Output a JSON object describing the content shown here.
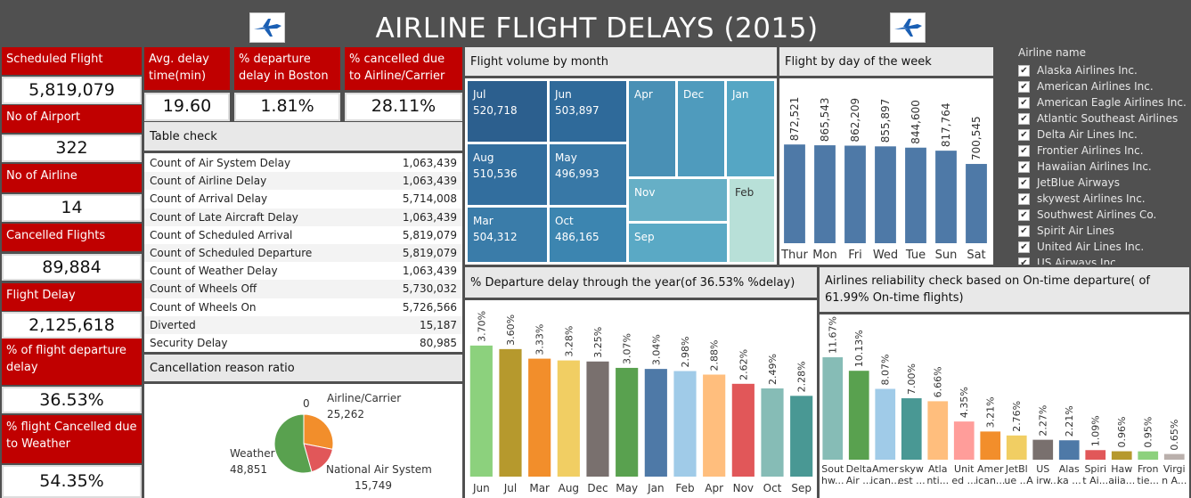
{
  "title": "AIRLINE FLIGHT DELAYS (2015)",
  "kpis_left": [
    {
      "label": "Scheduled Flight",
      "value": "5,819,079"
    },
    {
      "label": "No of Airport",
      "value": "322"
    },
    {
      "label": "No of Airline",
      "value": "14"
    },
    {
      "label": "Cancelled Flights",
      "value": "89,884"
    },
    {
      "label": "Flight Delay",
      "value": "2,125,618"
    },
    {
      "label": "% of flight departure delay",
      "value": "36.53%"
    },
    {
      "label": "% flight Cancelled due to Weather",
      "value": "54.35%"
    }
  ],
  "kpis_top": [
    {
      "label": "Avg. delay time(min)",
      "value": "19.60"
    },
    {
      "label": "% departure delay in Boston",
      "value": "1.81%"
    },
    {
      "label": "% cancelled due to Airline/Carrier",
      "value": "28.11%"
    }
  ],
  "table_check": {
    "title": "Table check",
    "rows": [
      {
        "name": "Count of Air System Delay",
        "value": "1,063,439"
      },
      {
        "name": "Count of Airline Delay",
        "value": "1,063,439"
      },
      {
        "name": "Count of Arrival Delay",
        "value": "5,714,008"
      },
      {
        "name": "Count of Late Aircraft Delay",
        "value": "1,063,439"
      },
      {
        "name": "Count of Scheduled Arrival",
        "value": "5,819,079"
      },
      {
        "name": "Count of Scheduled Departure",
        "value": "5,819,079"
      },
      {
        "name": "Count of Weather Delay",
        "value": "1,063,439"
      },
      {
        "name": "Count of Wheels Off",
        "value": "5,730,032"
      },
      {
        "name": "Count of Wheels On",
        "value": "5,726,566"
      },
      {
        "name": "Diverted",
        "value": "15,187"
      },
      {
        "name": "Security Delay",
        "value": "80,985"
      }
    ]
  },
  "cancellation": {
    "title": "Cancellation reason ratio",
    "zero_label": "0",
    "slices": [
      {
        "name": "Airline/Carrier",
        "value": "25,262",
        "num": 25262,
        "color": "#f28e2b"
      },
      {
        "name": "National Air System",
        "value": "15,749",
        "num": 15749,
        "color": "#e15759"
      },
      {
        "name": "Weather",
        "value": "48,851",
        "num": 48851,
        "color": "#59a14f"
      }
    ]
  },
  "treemap": {
    "title": "Flight volume by month",
    "tiles": [
      {
        "month": "Jul",
        "value": "520,718"
      },
      {
        "month": "Jun",
        "value": "503,897"
      },
      {
        "month": "Aug",
        "value": "510,536"
      },
      {
        "month": "May",
        "value": "496,993"
      },
      {
        "month": "Mar",
        "value": "504,312"
      },
      {
        "month": "Oct",
        "value": "486,165"
      },
      {
        "month": "Apr",
        "value": ""
      },
      {
        "month": "Dec",
        "value": ""
      },
      {
        "month": "Jan",
        "value": ""
      },
      {
        "month": "Nov",
        "value": ""
      },
      {
        "month": "Feb",
        "value": ""
      },
      {
        "month": "Sep",
        "value": ""
      }
    ]
  },
  "day_chart_title": "Flight by day of the week",
  "month_chart_title": "% Departure delay through the year(of 36.53% %delay)",
  "airline_chart_title": "Airlines reliability check based on On-time departure( of 61.99% On-time flights)",
  "airline_filter": {
    "title": "Airline name",
    "items": [
      "Alaska Airlines Inc.",
      "American Airlines Inc.",
      "American Eagle Airlines Inc.",
      "Atlantic Southeast Airlines",
      "Delta Air Lines Inc.",
      "Frontier Airlines Inc.",
      "Hawaiian Airlines Inc.",
      "JetBlue Airways",
      "skywest Airlines Inc.",
      "Southwest Airlines Co.",
      "Spirit Air Lines",
      "United Air Lines Inc.",
      "US Airways Inc."
    ],
    "check_glyph": "✔"
  },
  "chart_data": [
    {
      "type": "bar",
      "title": "Flight by day of the week",
      "categories": [
        "Thur",
        "Mon",
        "Fri",
        "Wed",
        "Tue",
        "Sun",
        "Sat"
      ],
      "values": [
        872521,
        865543,
        862209,
        855897,
        844600,
        817764,
        700545
      ],
      "labels": [
        "872,521",
        "865,543",
        "862,209",
        "855,897",
        "844,600",
        "817,764",
        "700,545"
      ],
      "ylim": [
        0,
        1000000
      ],
      "color": "#4e79a7"
    },
    {
      "type": "bar",
      "title": "% Departure delay through the year(of 36.53% %delay)",
      "categories": [
        "Jun",
        "Jul",
        "Mar",
        "Aug",
        "Dec",
        "May",
        "Jan",
        "Feb",
        "Apr",
        "Nov",
        "Oct",
        "Sep"
      ],
      "values": [
        3.7,
        3.6,
        3.33,
        3.28,
        3.25,
        3.07,
        3.04,
        2.98,
        2.88,
        2.62,
        2.49,
        2.28
      ],
      "labels": [
        "3.70%",
        "3.60%",
        "3.33%",
        "3.28%",
        "3.25%",
        "3.07%",
        "3.04%",
        "2.98%",
        "2.88%",
        "2.62%",
        "2.49%",
        "2.28%"
      ],
      "ylim": [
        0,
        4.2
      ],
      "colors": [
        "#8cd17d",
        "#b6992d",
        "#f28e2b",
        "#f1ce63",
        "#79706e",
        "#59a14f",
        "#4e79a7",
        "#a0cbe8",
        "#ffbe7d",
        "#e15759",
        "#86bcb6",
        "#499894"
      ]
    },
    {
      "type": "bar",
      "title": "Airlines reliability check based on On-time departure( of 61.99% On-time flights)",
      "categories": [
        "Sout hw...",
        "Delta Air ...",
        "Amer ican...",
        "skyw est ...",
        "Atla nti...",
        "Unit ed ...",
        "Amer ican...",
        "JetBl ue ...",
        "US A irw...",
        "Alas ka ...",
        "Spiri t Ai...",
        "Haw aiia...",
        "Fron tie...",
        "Virgi n A..."
      ],
      "values": [
        11.67,
        10.13,
        8.07,
        7.0,
        6.66,
        4.35,
        3.21,
        2.76,
        2.27,
        2.21,
        1.09,
        0.96,
        0.95,
        0.65
      ],
      "labels": [
        "11.67%",
        "10.13%",
        "8.07%",
        "7.00%",
        "6.66%",
        "4.35%",
        "3.21%",
        "2.76%",
        "2.27%",
        "2.21%",
        "1.09%",
        "0.96%",
        "0.95%",
        "0.65%"
      ],
      "ylim": [
        0,
        13.5
      ],
      "colors": [
        "#86bcb6",
        "#59a14f",
        "#a0cbe8",
        "#499894",
        "#ffbe7d",
        "#ff9d9a",
        "#f28e2b",
        "#f1ce63",
        "#79706e",
        "#4e79a7",
        "#e15759",
        "#b6992d",
        "#8cd17d",
        "#bab0ac"
      ]
    }
  ]
}
